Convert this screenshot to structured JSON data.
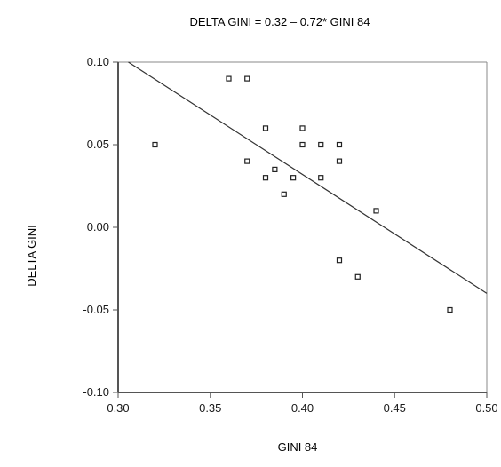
{
  "chart_data": {
    "type": "scatter",
    "title": "DELTA GINI = 0.32 – 0.72* GINI 84",
    "xlabel": "GINI 84",
    "ylabel": "DELTA GINI",
    "xlim": [
      0.3,
      0.5
    ],
    "ylim": [
      -0.1,
      0.1
    ],
    "xticks": [
      "0.30",
      "0.35",
      "0.40",
      "0.45",
      "0.50"
    ],
    "yticks": [
      "0.10",
      "0.05",
      "0.00",
      "-0.05",
      "-0.10"
    ],
    "grid": false,
    "legend": "none",
    "points": [
      {
        "x": 0.32,
        "y": 0.05
      },
      {
        "x": 0.36,
        "y": 0.09
      },
      {
        "x": 0.37,
        "y": 0.09
      },
      {
        "x": 0.37,
        "y": 0.04
      },
      {
        "x": 0.38,
        "y": 0.06
      },
      {
        "x": 0.38,
        "y": 0.03
      },
      {
        "x": 0.385,
        "y": 0.035
      },
      {
        "x": 0.39,
        "y": 0.02
      },
      {
        "x": 0.395,
        "y": 0.03
      },
      {
        "x": 0.4,
        "y": 0.06
      },
      {
        "x": 0.4,
        "y": 0.05
      },
      {
        "x": 0.41,
        "y": 0.05
      },
      {
        "x": 0.41,
        "y": 0.03
      },
      {
        "x": 0.42,
        "y": 0.05
      },
      {
        "x": 0.42,
        "y": 0.04
      },
      {
        "x": 0.42,
        "y": -0.02
      },
      {
        "x": 0.43,
        "y": -0.03
      },
      {
        "x": 0.44,
        "y": 0.01
      },
      {
        "x": 0.48,
        "y": -0.05
      }
    ],
    "regression": {
      "intercept": 0.32,
      "slope": -0.72
    },
    "colors": {
      "point": "#222222",
      "line": "#333333",
      "axis": "#555555",
      "frame": "#888888"
    }
  }
}
